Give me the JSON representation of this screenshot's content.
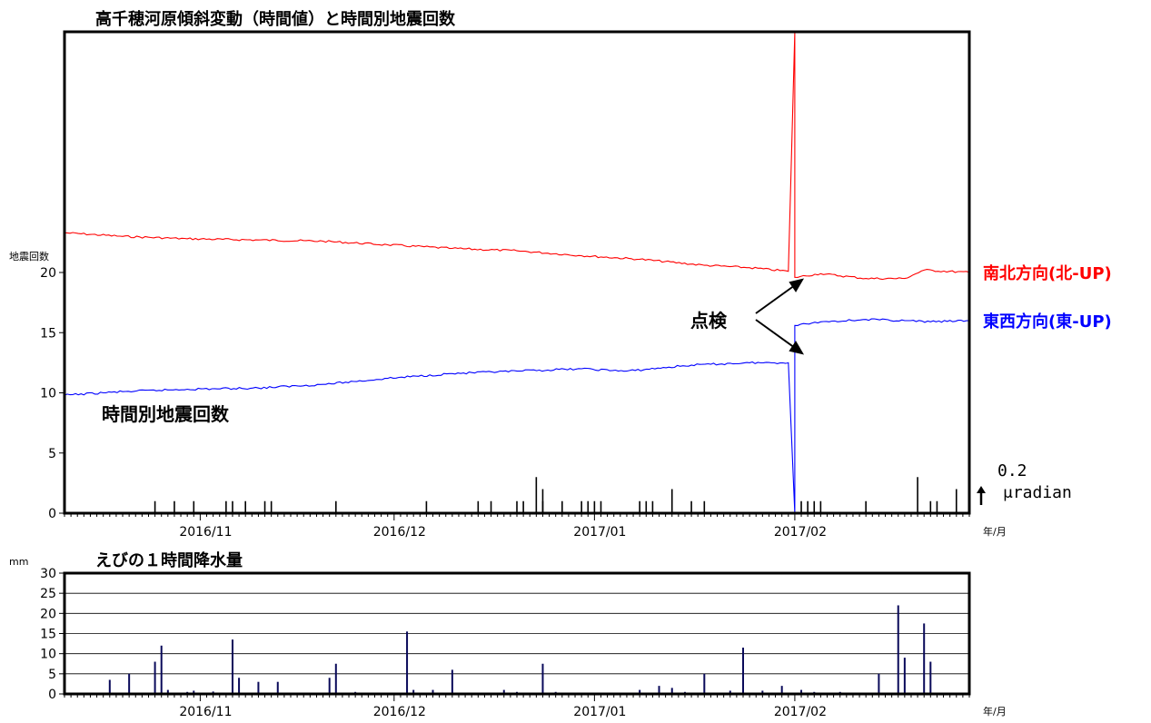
{
  "chart_data": [
    {
      "type": "line",
      "title": "高千穂河原傾斜変動（時間値）と時間別地震回数",
      "ylabel": "地震回数",
      "xlabel": "年/月",
      "x_tick_labels": [
        "2016/11",
        "2016/12",
        "2017/01",
        "2017/02"
      ],
      "x_range": [
        "2016-10-11",
        "2017-02-28"
      ],
      "ylim": [
        0,
        40
      ],
      "y_ticks": [
        0,
        5,
        10,
        15,
        20
      ],
      "scale_annotation": {
        "value": "0.2",
        "unit": "μradian"
      },
      "annotations": {
        "inspection": "点検",
        "earthquake_label": "時間別地震回数"
      },
      "series": [
        {
          "name": "南北方向(北-UP)",
          "color": "#ff0000",
          "points": [
            [
              "2016-10-11",
              23.3
            ],
            [
              "2016-10-20",
              23.0
            ],
            [
              "2016-10-30",
              22.8
            ],
            [
              "2016-11-10",
              22.7
            ],
            [
              "2016-11-20",
              22.6
            ],
            [
              "2016-11-30",
              22.3
            ],
            [
              "2016-12-10",
              22.0
            ],
            [
              "2016-12-20",
              21.8
            ],
            [
              "2016-12-30",
              21.4
            ],
            [
              "2017-01-08",
              21.1
            ],
            [
              "2017-01-18",
              20.6
            ],
            [
              "2017-01-25",
              20.4
            ],
            [
              "2017-01-31",
              20.1
            ],
            [
              "2017-02-01",
              40.0
            ],
            [
              "2017-02-01",
              19.6
            ],
            [
              "2017-02-05",
              19.9
            ],
            [
              "2017-02-12",
              19.5
            ],
            [
              "2017-02-18",
              19.5
            ],
            [
              "2017-02-21",
              20.2
            ],
            [
              "2017-02-28",
              20.0
            ]
          ]
        },
        {
          "name": "東西方向(東-UP)",
          "color": "#0000ff",
          "points": [
            [
              "2016-10-11",
              9.8
            ],
            [
              "2016-10-20",
              10.1
            ],
            [
              "2016-10-30",
              10.3
            ],
            [
              "2016-11-10",
              10.4
            ],
            [
              "2016-11-20",
              10.7
            ],
            [
              "2016-11-30",
              11.2
            ],
            [
              "2016-12-10",
              11.6
            ],
            [
              "2016-12-20",
              11.8
            ],
            [
              "2016-12-30",
              12.0
            ],
            [
              "2017-01-06",
              11.8
            ],
            [
              "2017-01-16",
              12.3
            ],
            [
              "2017-01-25",
              12.5
            ],
            [
              "2017-01-31",
              12.5
            ],
            [
              "2017-02-01",
              0.0
            ],
            [
              "2017-02-01",
              15.6
            ],
            [
              "2017-02-05",
              15.9
            ],
            [
              "2017-02-12",
              16.1
            ],
            [
              "2017-02-18",
              16.0
            ],
            [
              "2017-02-22",
              15.9
            ],
            [
              "2017-02-28",
              16.0
            ]
          ]
        }
      ],
      "earthquake_counts": [
        [
          "2016-10-25",
          1
        ],
        [
          "2016-10-28",
          1
        ],
        [
          "2016-10-31",
          1
        ],
        [
          "2016-11-05",
          1
        ],
        [
          "2016-11-06",
          1
        ],
        [
          "2016-11-08",
          1
        ],
        [
          "2016-11-11",
          1
        ],
        [
          "2016-11-12",
          1
        ],
        [
          "2016-11-22",
          1
        ],
        [
          "2016-12-06",
          1
        ],
        [
          "2016-12-14",
          1
        ],
        [
          "2016-12-16",
          1
        ],
        [
          "2016-12-20",
          1
        ],
        [
          "2016-12-21",
          1
        ],
        [
          "2016-12-23",
          3
        ],
        [
          "2016-12-24",
          1
        ],
        [
          "2016-12-24",
          2
        ],
        [
          "2016-12-27",
          1
        ],
        [
          "2016-12-30",
          1
        ],
        [
          "2016-12-31",
          1
        ],
        [
          "2017-01-01",
          1
        ],
        [
          "2017-01-02",
          1
        ],
        [
          "2017-01-08",
          1
        ],
        [
          "2017-01-09",
          1
        ],
        [
          "2017-01-10",
          1
        ],
        [
          "2017-01-13",
          2
        ],
        [
          "2017-01-16",
          1
        ],
        [
          "2017-01-18",
          1
        ],
        [
          "2017-02-02",
          1
        ],
        [
          "2017-02-03",
          1
        ],
        [
          "2017-02-04",
          1
        ],
        [
          "2017-02-05",
          1
        ],
        [
          "2017-02-12",
          1
        ],
        [
          "2017-02-20",
          3
        ],
        [
          "2017-02-22",
          1
        ],
        [
          "2017-02-23",
          1
        ],
        [
          "2017-02-26",
          2
        ]
      ]
    },
    {
      "type": "bar",
      "title": "えびの１時間降水量",
      "ylabel": "mm",
      "xlabel": "年/月",
      "x_tick_labels": [
        "2016/11",
        "2016/12",
        "2017/01",
        "2017/02"
      ],
      "x_range": [
        "2016-10-11",
        "2017-02-28"
      ],
      "ylim": [
        0,
        30
      ],
      "y_ticks": [
        0,
        5,
        10,
        15,
        20,
        25,
        30
      ],
      "grid": true,
      "values": [
        [
          "2016-10-18",
          3.5
        ],
        [
          "2016-10-21",
          5.0
        ],
        [
          "2016-10-25",
          8.0
        ],
        [
          "2016-10-26",
          12.0
        ],
        [
          "2016-10-27",
          1.0
        ],
        [
          "2016-10-30",
          0.5
        ],
        [
          "2016-10-31",
          0.8
        ],
        [
          "2016-11-03",
          0.6
        ],
        [
          "2016-11-06",
          13.5
        ],
        [
          "2016-11-07",
          4.0
        ],
        [
          "2016-11-10",
          3.0
        ],
        [
          "2016-11-13",
          3.0
        ],
        [
          "2016-11-21",
          4.0
        ],
        [
          "2016-11-22",
          7.5
        ],
        [
          "2016-11-25",
          0.5
        ],
        [
          "2016-12-03",
          15.5
        ],
        [
          "2016-12-04",
          1.0
        ],
        [
          "2016-12-07",
          1.0
        ],
        [
          "2016-12-10",
          6.0
        ],
        [
          "2016-12-18",
          1.0
        ],
        [
          "2016-12-20",
          0.5
        ],
        [
          "2016-12-24",
          7.5
        ],
        [
          "2016-12-26",
          0.5
        ],
        [
          "2017-01-08",
          1.0
        ],
        [
          "2017-01-11",
          2.0
        ],
        [
          "2017-01-13",
          1.5
        ],
        [
          "2017-01-15",
          0.5
        ],
        [
          "2017-01-18",
          5.0
        ],
        [
          "2017-01-22",
          0.8
        ],
        [
          "2017-01-24",
          11.5
        ],
        [
          "2017-01-27",
          0.8
        ],
        [
          "2017-01-30",
          2.0
        ],
        [
          "2017-02-02",
          1.0
        ],
        [
          "2017-02-04",
          0.5
        ],
        [
          "2017-02-08",
          0.5
        ],
        [
          "2017-02-14",
          5.0
        ],
        [
          "2017-02-17",
          22.0
        ],
        [
          "2017-02-18",
          9.0
        ],
        [
          "2017-02-21",
          17.5
        ],
        [
          "2017-02-22",
          8.0
        ]
      ]
    }
  ]
}
